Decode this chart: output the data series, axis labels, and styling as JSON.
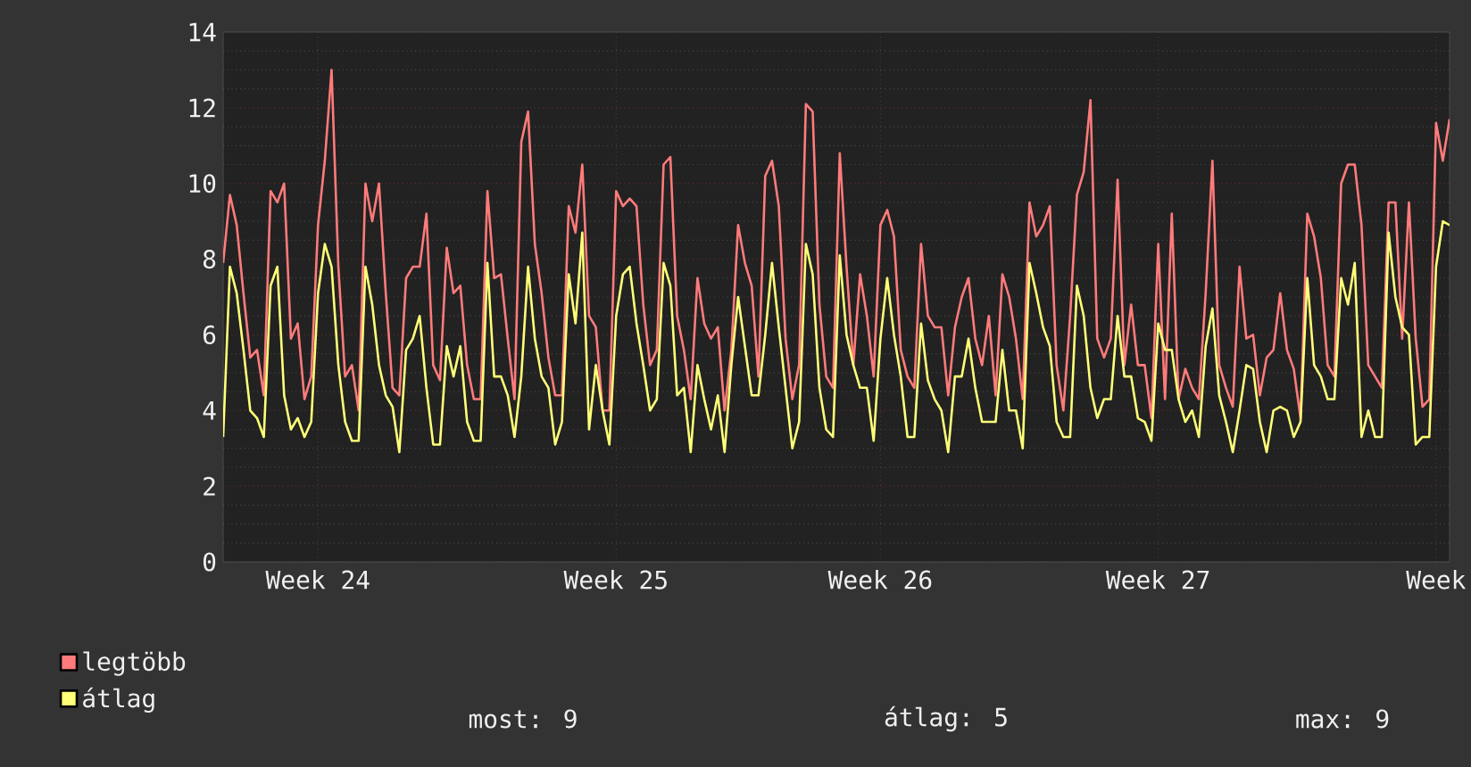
{
  "chart_data": {
    "type": "line",
    "categories": [
      null,
      null,
      null,
      null,
      null,
      null,
      null,
      null,
      null,
      null,
      null,
      null,
      null,
      null,
      "Week 24",
      null,
      null,
      null,
      null,
      null,
      null,
      null,
      null,
      null,
      null,
      null,
      null,
      null,
      null,
      null,
      null,
      null,
      null,
      null,
      null,
      null,
      null,
      null,
      null,
      null,
      null,
      null,
      null,
      null,
      null,
      null,
      null,
      null,
      null,
      null,
      null,
      null,
      null,
      null,
      null,
      null,
      null,
      null,
      "Week 25",
      null,
      null,
      null,
      null,
      null,
      null,
      null,
      null,
      null,
      null,
      null,
      null,
      null,
      null,
      null,
      null,
      null,
      null,
      null,
      null,
      null,
      null,
      null,
      null,
      null,
      null,
      null,
      null,
      null,
      null,
      null,
      null,
      null,
      null,
      null,
      null,
      null,
      null,
      "Week 26",
      null,
      null,
      null,
      null,
      null,
      null,
      null,
      null,
      null,
      null,
      null,
      null,
      null,
      null,
      null,
      null,
      null,
      null,
      null,
      null,
      null,
      null,
      null,
      null,
      null,
      null,
      null,
      null,
      null,
      null,
      null,
      null,
      null,
      null,
      null,
      null,
      null,
      null,
      null,
      null,
      "Week 27",
      null,
      null,
      null,
      null,
      null,
      null,
      null,
      null,
      null,
      null,
      null,
      null,
      null,
      null,
      null,
      null,
      null,
      null,
      null,
      null,
      null,
      null,
      null,
      null,
      null,
      null,
      null,
      null,
      null,
      null,
      null,
      null,
      null,
      null,
      null,
      null,
      null,
      null,
      null,
      null,
      "Week",
      null,
      null
    ],
    "ylim": [
      0,
      14
    ],
    "yticks": [
      0,
      2,
      4,
      6,
      8,
      10,
      12,
      14
    ],
    "grid": true,
    "legend": "bottom",
    "annotations": [
      "most: 9",
      "átlag: 5",
      "max: 9"
    ],
    "series": [
      {
        "name": "legtöbb",
        "color": "#ff7b7b",
        "values": [
          7.9,
          9.7,
          8.9,
          7.1,
          5.4,
          5.6,
          4.4,
          9.8,
          9.5,
          10.0,
          5.9,
          6.3,
          4.3,
          4.9,
          8.9,
          10.6,
          13.0,
          7.8,
          4.9,
          5.2,
          4.0,
          10.0,
          9.0,
          10.0,
          7.1,
          4.6,
          4.4,
          7.5,
          7.8,
          7.8,
          9.2,
          5.2,
          4.8,
          8.3,
          7.1,
          7.3,
          5.2,
          4.3,
          4.3,
          9.8,
          7.5,
          7.6,
          5.9,
          4.3,
          11.1,
          11.9,
          8.4,
          7.1,
          5.4,
          4.4,
          4.4,
          9.4,
          8.7,
          10.5,
          6.5,
          6.2,
          4.0,
          4.0,
          9.8,
          9.4,
          9.6,
          9.4,
          6.8,
          5.2,
          5.6,
          10.5,
          10.7,
          6.5,
          5.6,
          4.3,
          7.5,
          6.3,
          5.9,
          6.2,
          4.0,
          5.6,
          8.9,
          7.9,
          7.3,
          4.9,
          10.2,
          10.6,
          9.4,
          5.9,
          4.3,
          5.2,
          12.1,
          11.9,
          6.8,
          4.9,
          4.6,
          10.8,
          7.8,
          5.2,
          7.6,
          6.5,
          4.9,
          8.9,
          9.3,
          8.6,
          5.6,
          4.9,
          4.6,
          8.4,
          6.5,
          6.2,
          6.2,
          4.4,
          6.2,
          7.0,
          7.5,
          5.9,
          5.2,
          6.5,
          4.4,
          7.6,
          7.0,
          5.9,
          4.3,
          9.5,
          8.6,
          8.9,
          9.4,
          5.2,
          4.0,
          6.5,
          9.7,
          10.3,
          12.2,
          5.9,
          5.4,
          5.9,
          10.1,
          5.2,
          6.8,
          5.2,
          5.2,
          3.8,
          8.4,
          4.3,
          9.2,
          4.3,
          5.1,
          4.6,
          4.3,
          7.1,
          10.6,
          5.2,
          4.6,
          4.1,
          7.8,
          5.9,
          6.0,
          4.4,
          5.4,
          5.6,
          7.1,
          5.6,
          5.1,
          3.8,
          9.2,
          8.6,
          7.5,
          5.2,
          4.9,
          10.0,
          10.5,
          10.5,
          8.9,
          5.2,
          4.9,
          4.6,
          9.5,
          9.5,
          5.9,
          9.5,
          5.9,
          4.1,
          4.3,
          11.6,
          10.6,
          11.7
        ]
      },
      {
        "name": "átlag",
        "color": "#ffff78",
        "values": [
          3.3,
          7.8,
          7.1,
          5.6,
          4.0,
          3.8,
          3.3,
          7.3,
          7.8,
          4.4,
          3.5,
          3.8,
          3.3,
          3.7,
          7.1,
          8.4,
          7.8,
          5.2,
          3.7,
          3.2,
          3.2,
          7.8,
          6.8,
          5.2,
          4.4,
          4.1,
          2.9,
          5.6,
          5.9,
          6.5,
          4.6,
          3.1,
          3.1,
          5.7,
          4.9,
          5.7,
          3.7,
          3.2,
          3.2,
          7.9,
          4.9,
          4.9,
          4.4,
          3.3,
          4.9,
          7.8,
          5.9,
          4.9,
          4.6,
          3.1,
          3.7,
          7.6,
          6.3,
          8.7,
          3.5,
          5.2,
          4.0,
          3.1,
          6.5,
          7.6,
          7.8,
          6.3,
          5.2,
          4.0,
          4.3,
          7.9,
          7.3,
          4.4,
          4.6,
          2.9,
          5.2,
          4.3,
          3.5,
          4.4,
          2.9,
          5.2,
          7.0,
          5.7,
          4.4,
          4.4,
          6.0,
          7.9,
          6.2,
          4.6,
          3.0,
          3.7,
          8.4,
          7.6,
          4.6,
          3.5,
          3.3,
          8.1,
          6.0,
          5.2,
          4.6,
          4.6,
          3.2,
          5.9,
          7.5,
          6.0,
          4.9,
          3.3,
          3.3,
          6.3,
          4.8,
          4.3,
          4.0,
          2.9,
          4.9,
          4.9,
          5.9,
          4.6,
          3.7,
          3.7,
          3.7,
          5.6,
          4.0,
          4.0,
          3.0,
          7.9,
          7.1,
          6.2,
          5.7,
          3.7,
          3.3,
          3.3,
          7.3,
          6.5,
          4.6,
          3.8,
          4.3,
          4.3,
          6.5,
          4.9,
          4.9,
          3.8,
          3.7,
          3.2,
          6.3,
          5.6,
          5.6,
          4.3,
          3.7,
          4.0,
          3.3,
          5.7,
          6.7,
          4.4,
          3.7,
          2.9,
          4.0,
          5.2,
          5.1,
          3.7,
          2.9,
          4.0,
          4.1,
          4.0,
          3.3,
          3.7,
          7.5,
          5.2,
          4.9,
          4.3,
          4.3,
          7.5,
          6.8,
          7.9,
          3.3,
          4.0,
          3.3,
          3.3,
          8.7,
          7.0,
          6.2,
          6.0,
          3.1,
          3.3,
          3.3,
          7.8,
          9.0,
          8.9
        ]
      }
    ]
  }
}
